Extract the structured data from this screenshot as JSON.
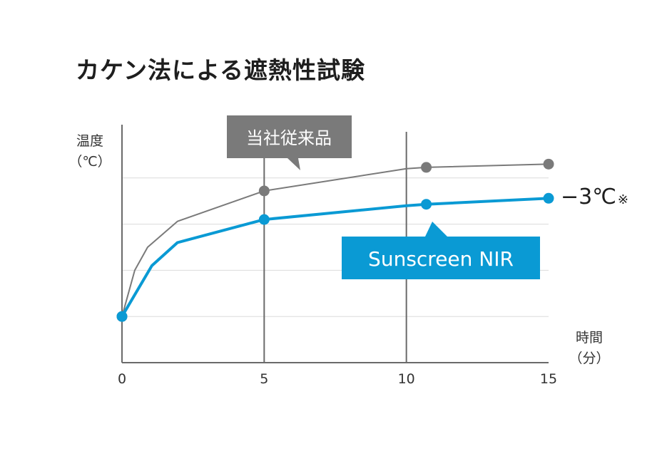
{
  "chart_data": {
    "type": "line",
    "title": "カケン法による遮熱性試験",
    "ylabel": "温度",
    "yunit": "（℃）",
    "xlabel": "時間",
    "xunit": "（分）",
    "xlim": [
      0,
      15
    ],
    "ylim": [
      0,
      5
    ],
    "x_ticks": [
      "0",
      "5",
      "10",
      "15"
    ],
    "grid": true,
    "series": [
      {
        "name": "当社従来品",
        "color": "#7a7a7a",
        "x": [
          0,
          0.45,
          0.9,
          1.95,
          5,
          10,
          10.7,
          15
        ],
        "y": [
          1.0,
          2.0,
          2.5,
          3.06,
          3.72,
          4.2,
          4.23,
          4.3
        ],
        "markers": [
          0,
          4,
          6,
          7
        ]
      },
      {
        "name": "Sunscreen NIR",
        "color": "#0a9ad4",
        "x": [
          0,
          1.05,
          1.95,
          5,
          10,
          10.7,
          15
        ],
        "y": [
          1.0,
          2.1,
          2.6,
          3.1,
          3.4,
          3.43,
          3.56
        ],
        "markers": [
          0,
          3,
          5,
          6
        ]
      }
    ],
    "annotation": {
      "value": "−3℃",
      "mark": "※"
    }
  }
}
